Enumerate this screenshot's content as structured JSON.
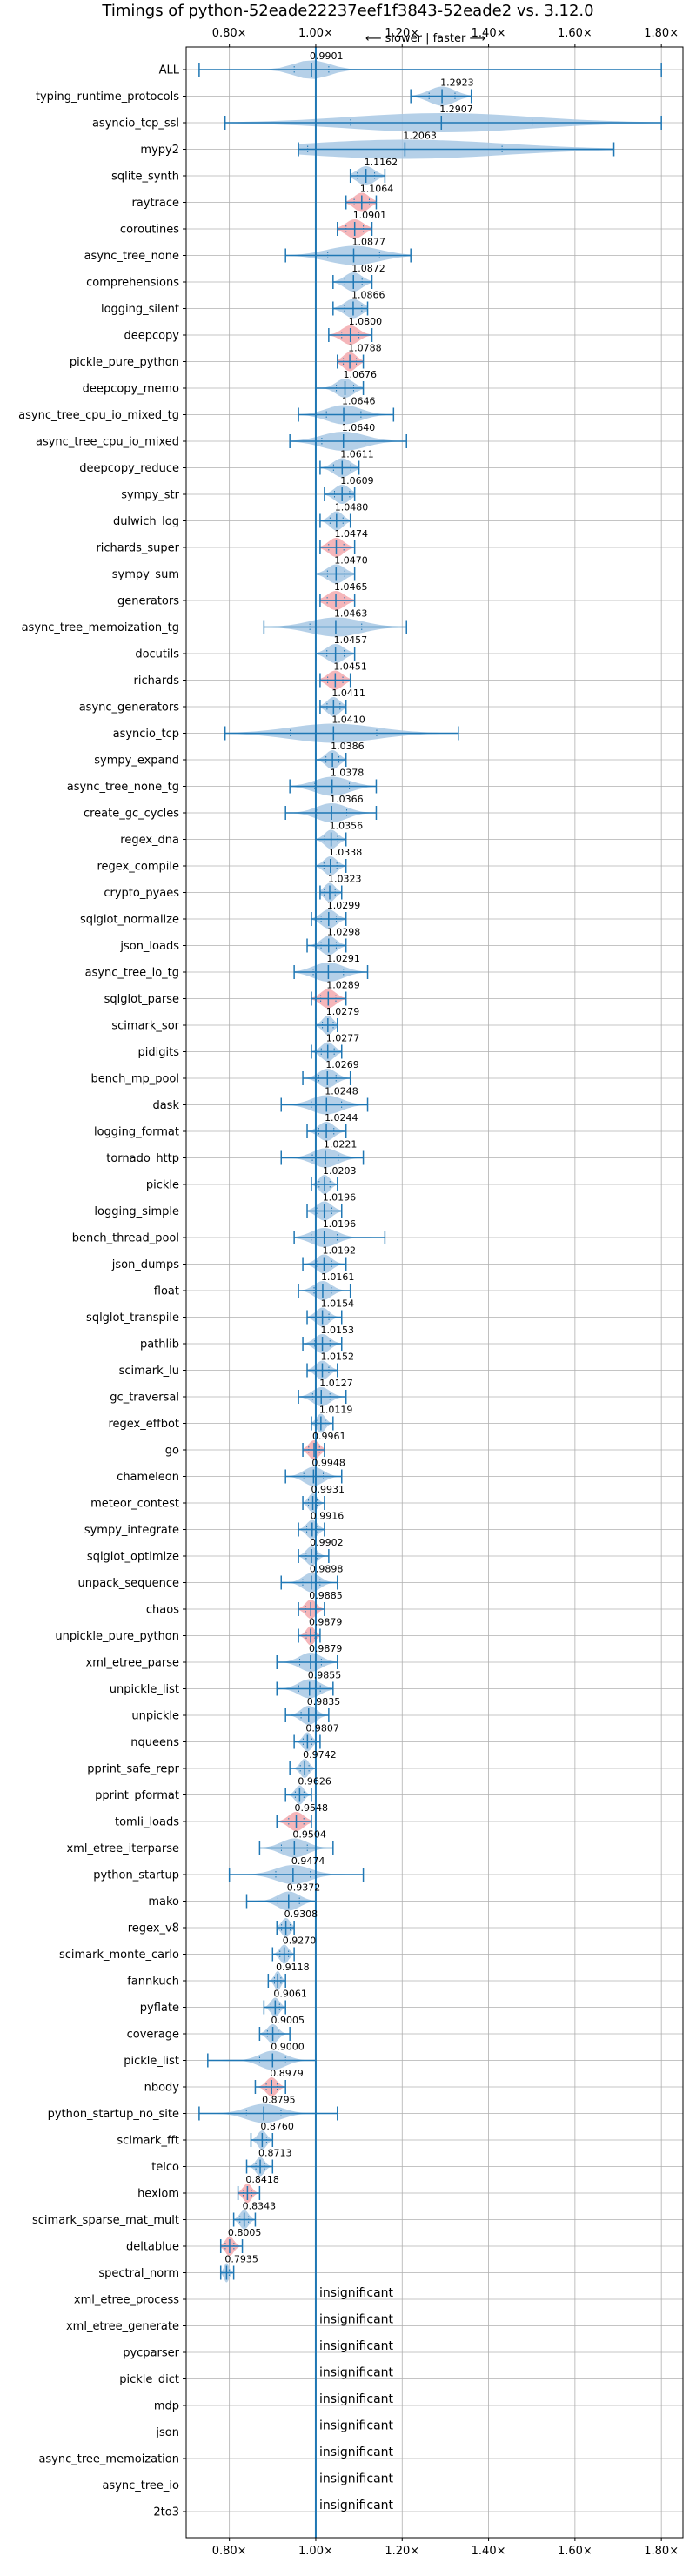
{
  "chart_data": {
    "type": "violin",
    "title": "Timings of python-52eade22237eef1f3843-52eade2 vs. 3.12.0",
    "top_caption": "⟵ slower | faster ⟶",
    "xlim": [
      0.7,
      1.85
    ],
    "xticks": [
      0.8,
      1.0,
      1.2,
      1.4,
      1.6,
      1.8
    ],
    "xtick_labels": [
      "0.80×",
      "1.00×",
      "1.20×",
      "1.40×",
      "1.60×",
      "1.80×"
    ],
    "reference_line": 1.0,
    "grid": true,
    "colors": {
      "normal": "#a8c8e4",
      "highlight": "#f3a9ae",
      "line": "#1f77b4"
    },
    "insignificant_text": "insignificant",
    "rows": [
      {
        "name": "ALL",
        "value": 0.9901,
        "label": "0.9901",
        "min": 0.73,
        "max": 1.8,
        "spread": 0.08,
        "highlight": false
      },
      {
        "name": "typing_runtime_protocols",
        "value": 1.2923,
        "label": "1.2923",
        "min": 1.22,
        "max": 1.36,
        "spread": 0.06,
        "highlight": false
      },
      {
        "name": "asyncio_tcp_ssl",
        "value": 1.2907,
        "label": "1.2907",
        "min": 0.79,
        "max": 1.8,
        "spread": 0.42,
        "highlight": false
      },
      {
        "name": "mypy2",
        "value": 1.2063,
        "label": "1.2063",
        "min": 0.96,
        "max": 1.69,
        "spread": 0.45,
        "highlight": false
      },
      {
        "name": "sqlite_synth",
        "value": 1.1162,
        "label": "1.1162",
        "min": 1.08,
        "max": 1.16,
        "spread": 0.04,
        "highlight": false
      },
      {
        "name": "raytrace",
        "value": 1.1064,
        "label": "1.1064",
        "min": 1.07,
        "max": 1.14,
        "spread": 0.035,
        "highlight": true
      },
      {
        "name": "coroutines",
        "value": 1.0901,
        "label": "1.0901",
        "min": 1.05,
        "max": 1.13,
        "spread": 0.04,
        "highlight": true
      },
      {
        "name": "async_tree_none",
        "value": 1.0877,
        "label": "1.0877",
        "min": 0.93,
        "max": 1.22,
        "spread": 0.12,
        "highlight": false
      },
      {
        "name": "comprehensions",
        "value": 1.0872,
        "label": "1.0872",
        "min": 1.04,
        "max": 1.13,
        "spread": 0.04,
        "highlight": false
      },
      {
        "name": "logging_silent",
        "value": 1.0866,
        "label": "1.0866",
        "min": 1.04,
        "max": 1.12,
        "spread": 0.04,
        "highlight": false
      },
      {
        "name": "deepcopy",
        "value": 1.08,
        "label": "1.0800",
        "min": 1.03,
        "max": 1.13,
        "spread": 0.04,
        "highlight": true
      },
      {
        "name": "pickle_pure_python",
        "value": 1.0788,
        "label": "1.0788",
        "min": 1.05,
        "max": 1.11,
        "spread": 0.03,
        "highlight": true
      },
      {
        "name": "deepcopy_memo",
        "value": 1.0676,
        "label": "1.0676",
        "min": 1.0,
        "max": 1.11,
        "spread": 0.04,
        "highlight": false
      },
      {
        "name": "async_tree_cpu_io_mixed_tg",
        "value": 1.0646,
        "label": "1.0646",
        "min": 0.96,
        "max": 1.18,
        "spread": 0.08,
        "highlight": false
      },
      {
        "name": "async_tree_cpu_io_mixed",
        "value": 1.064,
        "label": "1.0640",
        "min": 0.94,
        "max": 1.21,
        "spread": 0.1,
        "highlight": false
      },
      {
        "name": "deepcopy_reduce",
        "value": 1.0611,
        "label": "1.0611",
        "min": 1.01,
        "max": 1.1,
        "spread": 0.04,
        "highlight": false
      },
      {
        "name": "sympy_str",
        "value": 1.0609,
        "label": "1.0609",
        "min": 1.02,
        "max": 1.09,
        "spread": 0.035,
        "highlight": false
      },
      {
        "name": "dulwich_log",
        "value": 1.048,
        "label": "1.0480",
        "min": 1.01,
        "max": 1.08,
        "spread": 0.03,
        "highlight": false
      },
      {
        "name": "richards_super",
        "value": 1.0474,
        "label": "1.0474",
        "min": 1.01,
        "max": 1.09,
        "spread": 0.035,
        "highlight": true
      },
      {
        "name": "sympy_sum",
        "value": 1.047,
        "label": "1.0470",
        "min": 1.0,
        "max": 1.09,
        "spread": 0.04,
        "highlight": false
      },
      {
        "name": "generators",
        "value": 1.0465,
        "label": "1.0465",
        "min": 1.01,
        "max": 1.09,
        "spread": 0.04,
        "highlight": true
      },
      {
        "name": "async_tree_memoization_tg",
        "value": 1.0463,
        "label": "1.0463",
        "min": 0.88,
        "max": 1.21,
        "spread": 0.12,
        "highlight": false
      },
      {
        "name": "docutils",
        "value": 1.0457,
        "label": "1.0457",
        "min": 1.0,
        "max": 1.09,
        "spread": 0.04,
        "highlight": false
      },
      {
        "name": "richards",
        "value": 1.0451,
        "label": "1.0451",
        "min": 1.01,
        "max": 1.08,
        "spread": 0.035,
        "highlight": true
      },
      {
        "name": "async_generators",
        "value": 1.0411,
        "label": "1.0411",
        "min": 1.01,
        "max": 1.07,
        "spread": 0.03,
        "highlight": false
      },
      {
        "name": "asyncio_tcp",
        "value": 1.041,
        "label": "1.0410",
        "min": 0.79,
        "max": 1.33,
        "spread": 0.2,
        "highlight": false
      },
      {
        "name": "sympy_expand",
        "value": 1.0386,
        "label": "1.0386",
        "min": 1.0,
        "max": 1.07,
        "spread": 0.03,
        "highlight": false
      },
      {
        "name": "async_tree_none_tg",
        "value": 1.0378,
        "label": "1.0378",
        "min": 0.94,
        "max": 1.14,
        "spread": 0.08,
        "highlight": false
      },
      {
        "name": "create_gc_cycles",
        "value": 1.0366,
        "label": "1.0366",
        "min": 0.93,
        "max": 1.14,
        "spread": 0.07,
        "highlight": false
      },
      {
        "name": "regex_dna",
        "value": 1.0356,
        "label": "1.0356",
        "min": 1.0,
        "max": 1.07,
        "spread": 0.03,
        "highlight": false
      },
      {
        "name": "regex_compile",
        "value": 1.0338,
        "label": "1.0338",
        "min": 1.0,
        "max": 1.07,
        "spread": 0.03,
        "highlight": false
      },
      {
        "name": "crypto_pyaes",
        "value": 1.0323,
        "label": "1.0323",
        "min": 1.01,
        "max": 1.06,
        "spread": 0.025,
        "highlight": false
      },
      {
        "name": "sqlglot_normalize",
        "value": 1.0299,
        "label": "1.0299",
        "min": 0.99,
        "max": 1.07,
        "spread": 0.035,
        "highlight": false
      },
      {
        "name": "json_loads",
        "value": 1.0298,
        "label": "1.0298",
        "min": 0.98,
        "max": 1.07,
        "spread": 0.035,
        "highlight": false
      },
      {
        "name": "async_tree_io_tg",
        "value": 1.0291,
        "label": "1.0291",
        "min": 0.95,
        "max": 1.12,
        "spread": 0.07,
        "highlight": false
      },
      {
        "name": "sqlglot_parse",
        "value": 1.0289,
        "label": "1.0289",
        "min": 0.99,
        "max": 1.07,
        "spread": 0.035,
        "highlight": true
      },
      {
        "name": "scimark_sor",
        "value": 1.0279,
        "label": "1.0279",
        "min": 1.0,
        "max": 1.05,
        "spread": 0.025,
        "highlight": false
      },
      {
        "name": "pidigits",
        "value": 1.0277,
        "label": "1.0277",
        "min": 0.99,
        "max": 1.06,
        "spread": 0.03,
        "highlight": false
      },
      {
        "name": "bench_mp_pool",
        "value": 1.0269,
        "label": "1.0269",
        "min": 0.97,
        "max": 1.08,
        "spread": 0.04,
        "highlight": false
      },
      {
        "name": "dask",
        "value": 1.0248,
        "label": "1.0248",
        "min": 0.92,
        "max": 1.12,
        "spread": 0.07,
        "highlight": false
      },
      {
        "name": "logging_format",
        "value": 1.0244,
        "label": "1.0244",
        "min": 0.98,
        "max": 1.07,
        "spread": 0.035,
        "highlight": false
      },
      {
        "name": "tornado_http",
        "value": 1.0221,
        "label": "1.0221",
        "min": 0.92,
        "max": 1.11,
        "spread": 0.06,
        "highlight": false
      },
      {
        "name": "pickle",
        "value": 1.0203,
        "label": "1.0203",
        "min": 0.99,
        "max": 1.05,
        "spread": 0.025,
        "highlight": false
      },
      {
        "name": "logging_simple",
        "value": 1.0196,
        "label": "1.0196",
        "min": 0.98,
        "max": 1.06,
        "spread": 0.035,
        "highlight": false
      },
      {
        "name": "bench_thread_pool",
        "value": 1.0196,
        "label": "1.0196",
        "min": 0.95,
        "max": 1.16,
        "spread": 0.06,
        "highlight": false
      },
      {
        "name": "json_dumps",
        "value": 1.0192,
        "label": "1.0192",
        "min": 0.97,
        "max": 1.07,
        "spread": 0.035,
        "highlight": false
      },
      {
        "name": "float",
        "value": 1.0161,
        "label": "1.0161",
        "min": 0.96,
        "max": 1.08,
        "spread": 0.04,
        "highlight": false
      },
      {
        "name": "sqlglot_transpile",
        "value": 1.0154,
        "label": "1.0154",
        "min": 0.98,
        "max": 1.06,
        "spread": 0.03,
        "highlight": false
      },
      {
        "name": "pathlib",
        "value": 1.0153,
        "label": "1.0153",
        "min": 0.97,
        "max": 1.06,
        "spread": 0.035,
        "highlight": false
      },
      {
        "name": "scimark_lu",
        "value": 1.0152,
        "label": "1.0152",
        "min": 0.98,
        "max": 1.05,
        "spread": 0.03,
        "highlight": false
      },
      {
        "name": "gc_traversal",
        "value": 1.0127,
        "label": "1.0127",
        "min": 0.96,
        "max": 1.07,
        "spread": 0.04,
        "highlight": false
      },
      {
        "name": "regex_effbot",
        "value": 1.0119,
        "label": "1.0119",
        "min": 0.99,
        "max": 1.04,
        "spread": 0.02,
        "highlight": false
      },
      {
        "name": "go",
        "value": 0.9961,
        "label": "0.9961",
        "min": 0.97,
        "max": 1.02,
        "spread": 0.025,
        "highlight": true
      },
      {
        "name": "chameleon",
        "value": 0.9948,
        "label": "0.9948",
        "min": 0.93,
        "max": 1.06,
        "spread": 0.045,
        "highlight": false
      },
      {
        "name": "meteor_contest",
        "value": 0.9931,
        "label": "0.9931",
        "min": 0.97,
        "max": 1.02,
        "spread": 0.02,
        "highlight": false
      },
      {
        "name": "sympy_integrate",
        "value": 0.9916,
        "label": "0.9916",
        "min": 0.96,
        "max": 1.02,
        "spread": 0.025,
        "highlight": false
      },
      {
        "name": "sqlglot_optimize",
        "value": 0.9902,
        "label": "0.9902",
        "min": 0.96,
        "max": 1.03,
        "spread": 0.025,
        "highlight": false
      },
      {
        "name": "unpack_sequence",
        "value": 0.9898,
        "label": "0.9898",
        "min": 0.92,
        "max": 1.05,
        "spread": 0.04,
        "highlight": false
      },
      {
        "name": "chaos",
        "value": 0.9885,
        "label": "0.9885",
        "min": 0.96,
        "max": 1.02,
        "spread": 0.025,
        "highlight": true
      },
      {
        "name": "unpickle_pure_python",
        "value": 0.9879,
        "label": "0.9879",
        "min": 0.96,
        "max": 1.01,
        "spread": 0.02,
        "highlight": true
      },
      {
        "name": "xml_etree_parse",
        "value": 0.9879,
        "label": "0.9879",
        "min": 0.91,
        "max": 1.05,
        "spread": 0.05,
        "highlight": false
      },
      {
        "name": "unpickle_list",
        "value": 0.9855,
        "label": "0.9855",
        "min": 0.91,
        "max": 1.04,
        "spread": 0.05,
        "highlight": false
      },
      {
        "name": "unpickle",
        "value": 0.9835,
        "label": "0.9835",
        "min": 0.93,
        "max": 1.03,
        "spread": 0.035,
        "highlight": false
      },
      {
        "name": "nqueens",
        "value": 0.9807,
        "label": "0.9807",
        "min": 0.95,
        "max": 1.01,
        "spread": 0.02,
        "highlight": false
      },
      {
        "name": "pprint_safe_repr",
        "value": 0.9742,
        "label": "0.9742",
        "min": 0.94,
        "max": 1.0,
        "spread": 0.02,
        "highlight": false
      },
      {
        "name": "pprint_pformat",
        "value": 0.9626,
        "label": "0.9626",
        "min": 0.93,
        "max": 0.99,
        "spread": 0.02,
        "highlight": false
      },
      {
        "name": "tomli_loads",
        "value": 0.9548,
        "label": "0.9548",
        "min": 0.91,
        "max": 0.99,
        "spread": 0.035,
        "highlight": true
      },
      {
        "name": "xml_etree_iterparse",
        "value": 0.9504,
        "label": "0.9504",
        "min": 0.87,
        "max": 1.04,
        "spread": 0.06,
        "highlight": false
      },
      {
        "name": "python_startup",
        "value": 0.9474,
        "label": "0.9474",
        "min": 0.8,
        "max": 1.11,
        "spread": 0.08,
        "highlight": false
      },
      {
        "name": "mako",
        "value": 0.9372,
        "label": "0.9372",
        "min": 0.84,
        "max": 1.0,
        "spread": 0.05,
        "highlight": false
      },
      {
        "name": "regex_v8",
        "value": 0.9308,
        "label": "0.9308",
        "min": 0.91,
        "max": 0.95,
        "spread": 0.02,
        "highlight": false
      },
      {
        "name": "scimark_monte_carlo",
        "value": 0.927,
        "label": "0.9270",
        "min": 0.9,
        "max": 0.95,
        "spread": 0.02,
        "highlight": false
      },
      {
        "name": "fannkuch",
        "value": 0.9118,
        "label": "0.9118",
        "min": 0.89,
        "max": 0.93,
        "spread": 0.015,
        "highlight": false
      },
      {
        "name": "pyflate",
        "value": 0.9061,
        "label": "0.9061",
        "min": 0.88,
        "max": 0.93,
        "spread": 0.02,
        "highlight": false
      },
      {
        "name": "coverage",
        "value": 0.9005,
        "label": "0.9005",
        "min": 0.87,
        "max": 0.94,
        "spread": 0.025,
        "highlight": false
      },
      {
        "name": "pickle_list",
        "value": 0.9,
        "label": "0.9000",
        "min": 0.75,
        "max": 1.0,
        "spread": 0.06,
        "highlight": false
      },
      {
        "name": "nbody",
        "value": 0.8979,
        "label": "0.8979",
        "min": 0.86,
        "max": 0.93,
        "spread": 0.025,
        "highlight": true
      },
      {
        "name": "python_startup_no_site",
        "value": 0.8795,
        "label": "0.8795",
        "min": 0.73,
        "max": 1.05,
        "spread": 0.08,
        "highlight": false
      },
      {
        "name": "scimark_fft",
        "value": 0.876,
        "label": "0.8760",
        "min": 0.85,
        "max": 0.9,
        "spread": 0.02,
        "highlight": false
      },
      {
        "name": "telco",
        "value": 0.8713,
        "label": "0.8713",
        "min": 0.84,
        "max": 0.9,
        "spread": 0.02,
        "highlight": false
      },
      {
        "name": "hexiom",
        "value": 0.8418,
        "label": "0.8418",
        "min": 0.82,
        "max": 0.87,
        "spread": 0.02,
        "highlight": true
      },
      {
        "name": "scimark_sparse_mat_mult",
        "value": 0.8343,
        "label": "0.8343",
        "min": 0.81,
        "max": 0.86,
        "spread": 0.02,
        "highlight": false
      },
      {
        "name": "deltablue",
        "value": 0.8005,
        "label": "0.8005",
        "min": 0.78,
        "max": 0.83,
        "spread": 0.02,
        "highlight": true
      },
      {
        "name": "spectral_norm",
        "value": 0.7935,
        "label": "0.7935",
        "min": 0.78,
        "max": 0.81,
        "spread": 0.012,
        "highlight": false
      },
      {
        "name": "xml_etree_process",
        "value": null,
        "label": "",
        "insignificant": true
      },
      {
        "name": "xml_etree_generate",
        "value": null,
        "label": "",
        "insignificant": true
      },
      {
        "name": "pycparser",
        "value": null,
        "label": "",
        "insignificant": true
      },
      {
        "name": "pickle_dict",
        "value": null,
        "label": "",
        "insignificant": true
      },
      {
        "name": "mdp",
        "value": null,
        "label": "",
        "insignificant": true
      },
      {
        "name": "json",
        "value": null,
        "label": "",
        "insignificant": true
      },
      {
        "name": "async_tree_memoization",
        "value": null,
        "label": "",
        "insignificant": true
      },
      {
        "name": "async_tree_io",
        "value": null,
        "label": "",
        "insignificant": true
      },
      {
        "name": "2to3",
        "value": null,
        "label": "",
        "insignificant": true
      }
    ]
  }
}
